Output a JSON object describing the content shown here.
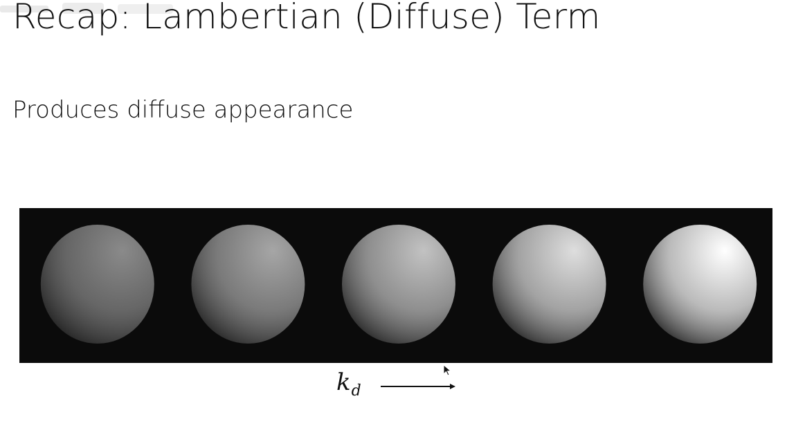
{
  "slide": {
    "title": "Recap: Lambertian (Diffuse) Term",
    "subtitle": "Produces diffuse appearance"
  },
  "figure": {
    "background_color": "#0b0b0b",
    "spheres": [
      {
        "kd": 0.2,
        "color": "#8a8a8a"
      },
      {
        "kd": 0.4,
        "color": "#a6a6a6"
      },
      {
        "kd": 0.6,
        "color": "#c2c2c2"
      },
      {
        "kd": 0.8,
        "color": "#dedede"
      },
      {
        "kd": 1.0,
        "color": "#ffffff"
      }
    ],
    "axis_label_base": "k",
    "axis_label_sub": "d"
  },
  "icons": {
    "arrow": "right-arrow-icon",
    "cursor": "mouse-pointer-icon"
  }
}
